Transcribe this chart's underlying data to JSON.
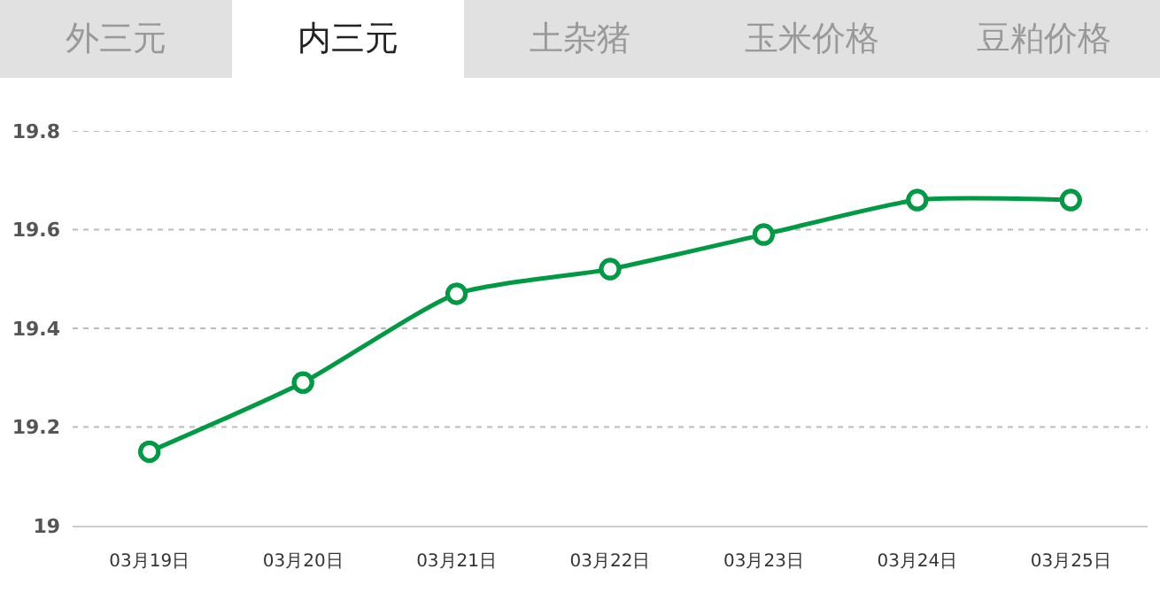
{
  "chart_data": {
    "type": "line",
    "annotations": [
      "外三元",
      "内三元",
      "土杂猪",
      "玉米价格",
      "豆粕价格"
    ],
    "categories": [
      "03月19日",
      "03月20日",
      "03月21日",
      "03月22日",
      "03月23日",
      "03月24日",
      "03月25日"
    ],
    "series": [
      {
        "color": "#009944",
        "values": [
          19.15,
          19.29,
          19.47,
          19.52,
          19.59,
          19.66,
          19.66
        ]
      }
    ],
    "ylim": [
      19,
      19.8
    ],
    "yticks": [
      19,
      19.2,
      19.4,
      19.6,
      19.8
    ],
    "grid": "y",
    "marker": "circle",
    "line_style": "solid"
  }
}
